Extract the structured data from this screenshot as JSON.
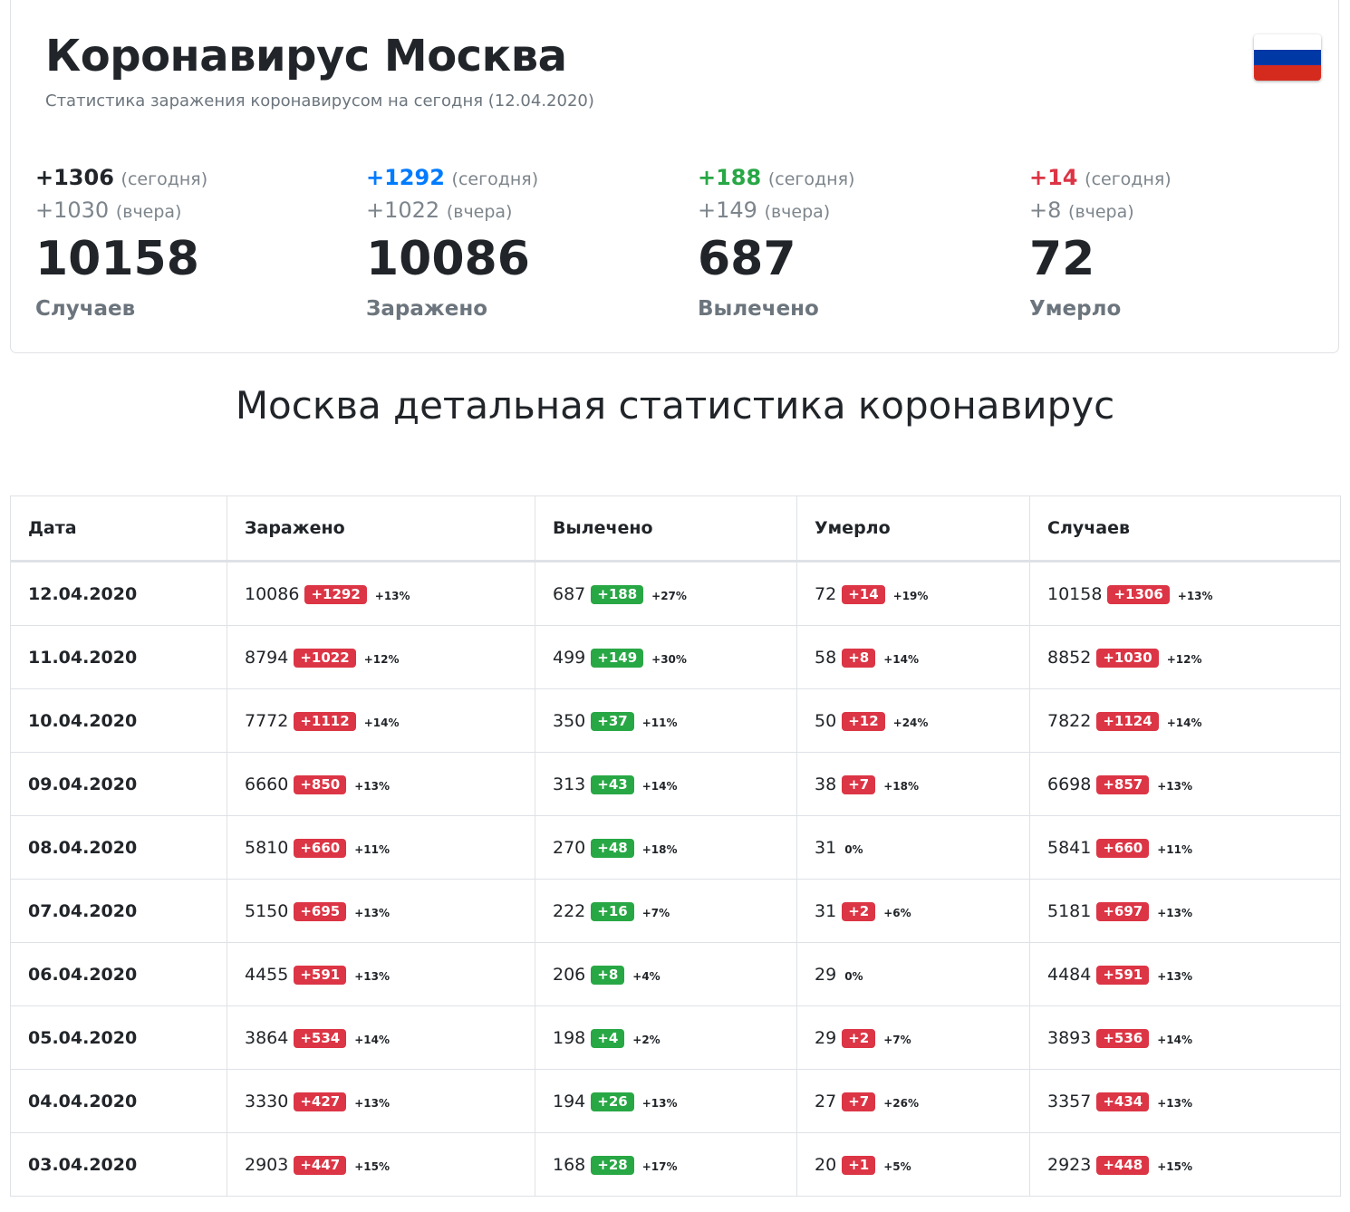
{
  "header": {
    "title": "Коронавирус Москва",
    "subtitle": "Статистика заражения коронавирусом на сегодня (12.04.2020)",
    "flag_colors": [
      "#ffffff",
      "#0039a6",
      "#d52b1e"
    ]
  },
  "summary": [
    {
      "today": "+1306",
      "today_suffix": "(сегодня)",
      "yesterday": "+1030",
      "yesterday_suffix": "(вчера)",
      "total": "10158",
      "label": "Случаев",
      "color": "#212529"
    },
    {
      "today": "+1292",
      "today_suffix": "(сегодня)",
      "yesterday": "+1022",
      "yesterday_suffix": "(вчера)",
      "total": "10086",
      "label": "Заражено",
      "color": "#007bff"
    },
    {
      "today": "+188",
      "today_suffix": "(сегодня)",
      "yesterday": "+149",
      "yesterday_suffix": "(вчера)",
      "total": "687",
      "label": "Вылечено",
      "color": "#28a745"
    },
    {
      "today": "+14",
      "today_suffix": "(сегодня)",
      "yesterday": "+8",
      "yesterday_suffix": "(вчера)",
      "total": "72",
      "label": "Умерло",
      "color": "#dc3545"
    }
  ],
  "section_title": "Москва детальная статистика коронавирус",
  "table": {
    "headers": [
      "Дата",
      "Заражено",
      "Вылечено",
      "Умерло",
      "Случаев"
    ],
    "rows": [
      {
        "date": "12.04.2020",
        "cells": [
          {
            "value": "10086",
            "delta": "+1292",
            "pct": "+13%",
            "color": "red"
          },
          {
            "value": "687",
            "delta": "+188",
            "pct": "+27%",
            "color": "green"
          },
          {
            "value": "72",
            "delta": "+14",
            "pct": "+19%",
            "color": "red"
          },
          {
            "value": "10158",
            "delta": "+1306",
            "pct": "+13%",
            "color": "red"
          }
        ]
      },
      {
        "date": "11.04.2020",
        "cells": [
          {
            "value": "8794",
            "delta": "+1022",
            "pct": "+12%",
            "color": "red"
          },
          {
            "value": "499",
            "delta": "+149",
            "pct": "+30%",
            "color": "green"
          },
          {
            "value": "58",
            "delta": "+8",
            "pct": "+14%",
            "color": "red"
          },
          {
            "value": "8852",
            "delta": "+1030",
            "pct": "+12%",
            "color": "red"
          }
        ]
      },
      {
        "date": "10.04.2020",
        "cells": [
          {
            "value": "7772",
            "delta": "+1112",
            "pct": "+14%",
            "color": "red"
          },
          {
            "value": "350",
            "delta": "+37",
            "pct": "+11%",
            "color": "green"
          },
          {
            "value": "50",
            "delta": "+12",
            "pct": "+24%",
            "color": "red"
          },
          {
            "value": "7822",
            "delta": "+1124",
            "pct": "+14%",
            "color": "red"
          }
        ]
      },
      {
        "date": "09.04.2020",
        "cells": [
          {
            "value": "6660",
            "delta": "+850",
            "pct": "+13%",
            "color": "red"
          },
          {
            "value": "313",
            "delta": "+43",
            "pct": "+14%",
            "color": "green"
          },
          {
            "value": "38",
            "delta": "+7",
            "pct": "+18%",
            "color": "red"
          },
          {
            "value": "6698",
            "delta": "+857",
            "pct": "+13%",
            "color": "red"
          }
        ]
      },
      {
        "date": "08.04.2020",
        "cells": [
          {
            "value": "5810",
            "delta": "+660",
            "pct": "+11%",
            "color": "red"
          },
          {
            "value": "270",
            "delta": "+48",
            "pct": "+18%",
            "color": "green"
          },
          {
            "value": "31",
            "delta": null,
            "pct": "0%",
            "color": "red"
          },
          {
            "value": "5841",
            "delta": "+660",
            "pct": "+11%",
            "color": "red"
          }
        ]
      },
      {
        "date": "07.04.2020",
        "cells": [
          {
            "value": "5150",
            "delta": "+695",
            "pct": "+13%",
            "color": "red"
          },
          {
            "value": "222",
            "delta": "+16",
            "pct": "+7%",
            "color": "green"
          },
          {
            "value": "31",
            "delta": "+2",
            "pct": "+6%",
            "color": "red"
          },
          {
            "value": "5181",
            "delta": "+697",
            "pct": "+13%",
            "color": "red"
          }
        ]
      },
      {
        "date": "06.04.2020",
        "cells": [
          {
            "value": "4455",
            "delta": "+591",
            "pct": "+13%",
            "color": "red"
          },
          {
            "value": "206",
            "delta": "+8",
            "pct": "+4%",
            "color": "green"
          },
          {
            "value": "29",
            "delta": null,
            "pct": "0%",
            "color": "red"
          },
          {
            "value": "4484",
            "delta": "+591",
            "pct": "+13%",
            "color": "red"
          }
        ]
      },
      {
        "date": "05.04.2020",
        "cells": [
          {
            "value": "3864",
            "delta": "+534",
            "pct": "+14%",
            "color": "red"
          },
          {
            "value": "198",
            "delta": "+4",
            "pct": "+2%",
            "color": "green"
          },
          {
            "value": "29",
            "delta": "+2",
            "pct": "+7%",
            "color": "red"
          },
          {
            "value": "3893",
            "delta": "+536",
            "pct": "+14%",
            "color": "red"
          }
        ]
      },
      {
        "date": "04.04.2020",
        "cells": [
          {
            "value": "3330",
            "delta": "+427",
            "pct": "+13%",
            "color": "red"
          },
          {
            "value": "194",
            "delta": "+26",
            "pct": "+13%",
            "color": "green"
          },
          {
            "value": "27",
            "delta": "+7",
            "pct": "+26%",
            "color": "red"
          },
          {
            "value": "3357",
            "delta": "+434",
            "pct": "+13%",
            "color": "red"
          }
        ]
      },
      {
        "date": "03.04.2020",
        "cells": [
          {
            "value": "2903",
            "delta": "+447",
            "pct": "+15%",
            "color": "red"
          },
          {
            "value": "168",
            "delta": "+28",
            "pct": "+17%",
            "color": "green"
          },
          {
            "value": "20",
            "delta": "+1",
            "pct": "+5%",
            "color": "red"
          },
          {
            "value": "2923",
            "delta": "+448",
            "pct": "+15%",
            "color": "red"
          }
        ]
      }
    ]
  }
}
